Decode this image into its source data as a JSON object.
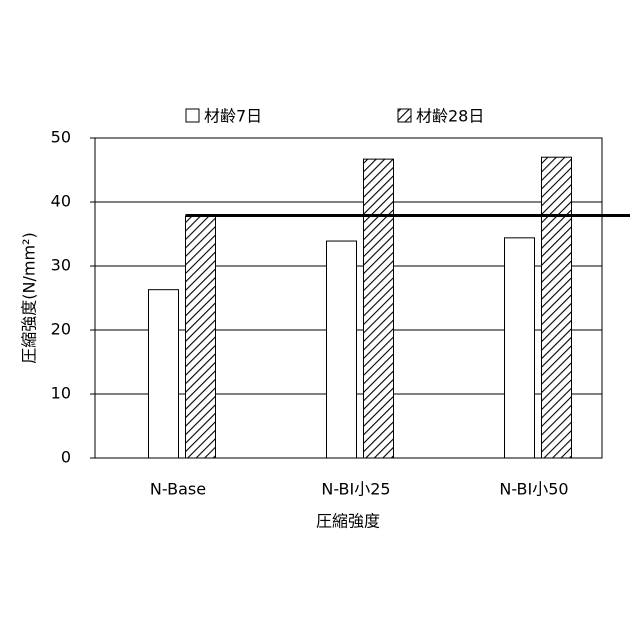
{
  "chart_data": {
    "type": "bar",
    "y_label": "圧縮強度(N/mm²)",
    "x_label": "圧縮強度",
    "categories": [
      "N-Base",
      "N-BI小25",
      "N-BI小50"
    ],
    "series": [
      {
        "name": "材齢7日",
        "color": "#ffffff",
        "values": [
          26.3,
          33.9,
          34.4
        ]
      },
      {
        "name": "材齢28日",
        "color": "hatch",
        "values": [
          37.8,
          46.7,
          47.0
        ]
      }
    ],
    "reference_line": 37.9,
    "ylim": [
      0,
      50
    ],
    "yticks": [
      0,
      10,
      20,
      30,
      40,
      50
    ],
    "grid": true
  }
}
